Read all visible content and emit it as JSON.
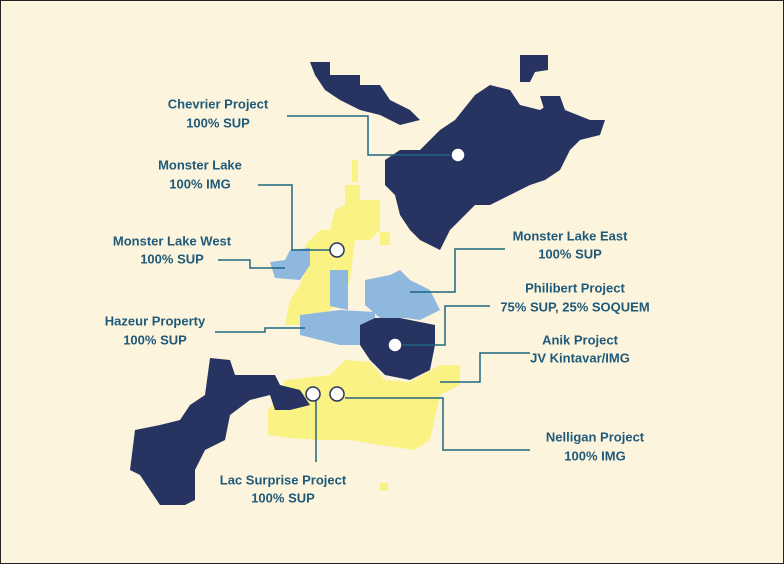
{
  "labels": [
    {
      "name": "Chevrier Project",
      "ownership": "100% SUP"
    },
    {
      "name": "Monster Lake",
      "ownership": "100% IMG"
    },
    {
      "name": "Monster Lake West",
      "ownership": "100% SUP"
    },
    {
      "name": "Hazeur Property",
      "ownership": "100% SUP"
    },
    {
      "name": "Monster Lake East",
      "ownership": "100% SUP"
    },
    {
      "name": "Philibert Project",
      "ownership": "75% SUP, 25% SOQUEM"
    },
    {
      "name": "Anik Project",
      "ownership": "JV Kintavar/IMG"
    },
    {
      "name": "Nelligan Project",
      "ownership": "100% IMG"
    },
    {
      "name": "Lac Surprise Project",
      "ownership": "100% SUP"
    }
  ]
}
